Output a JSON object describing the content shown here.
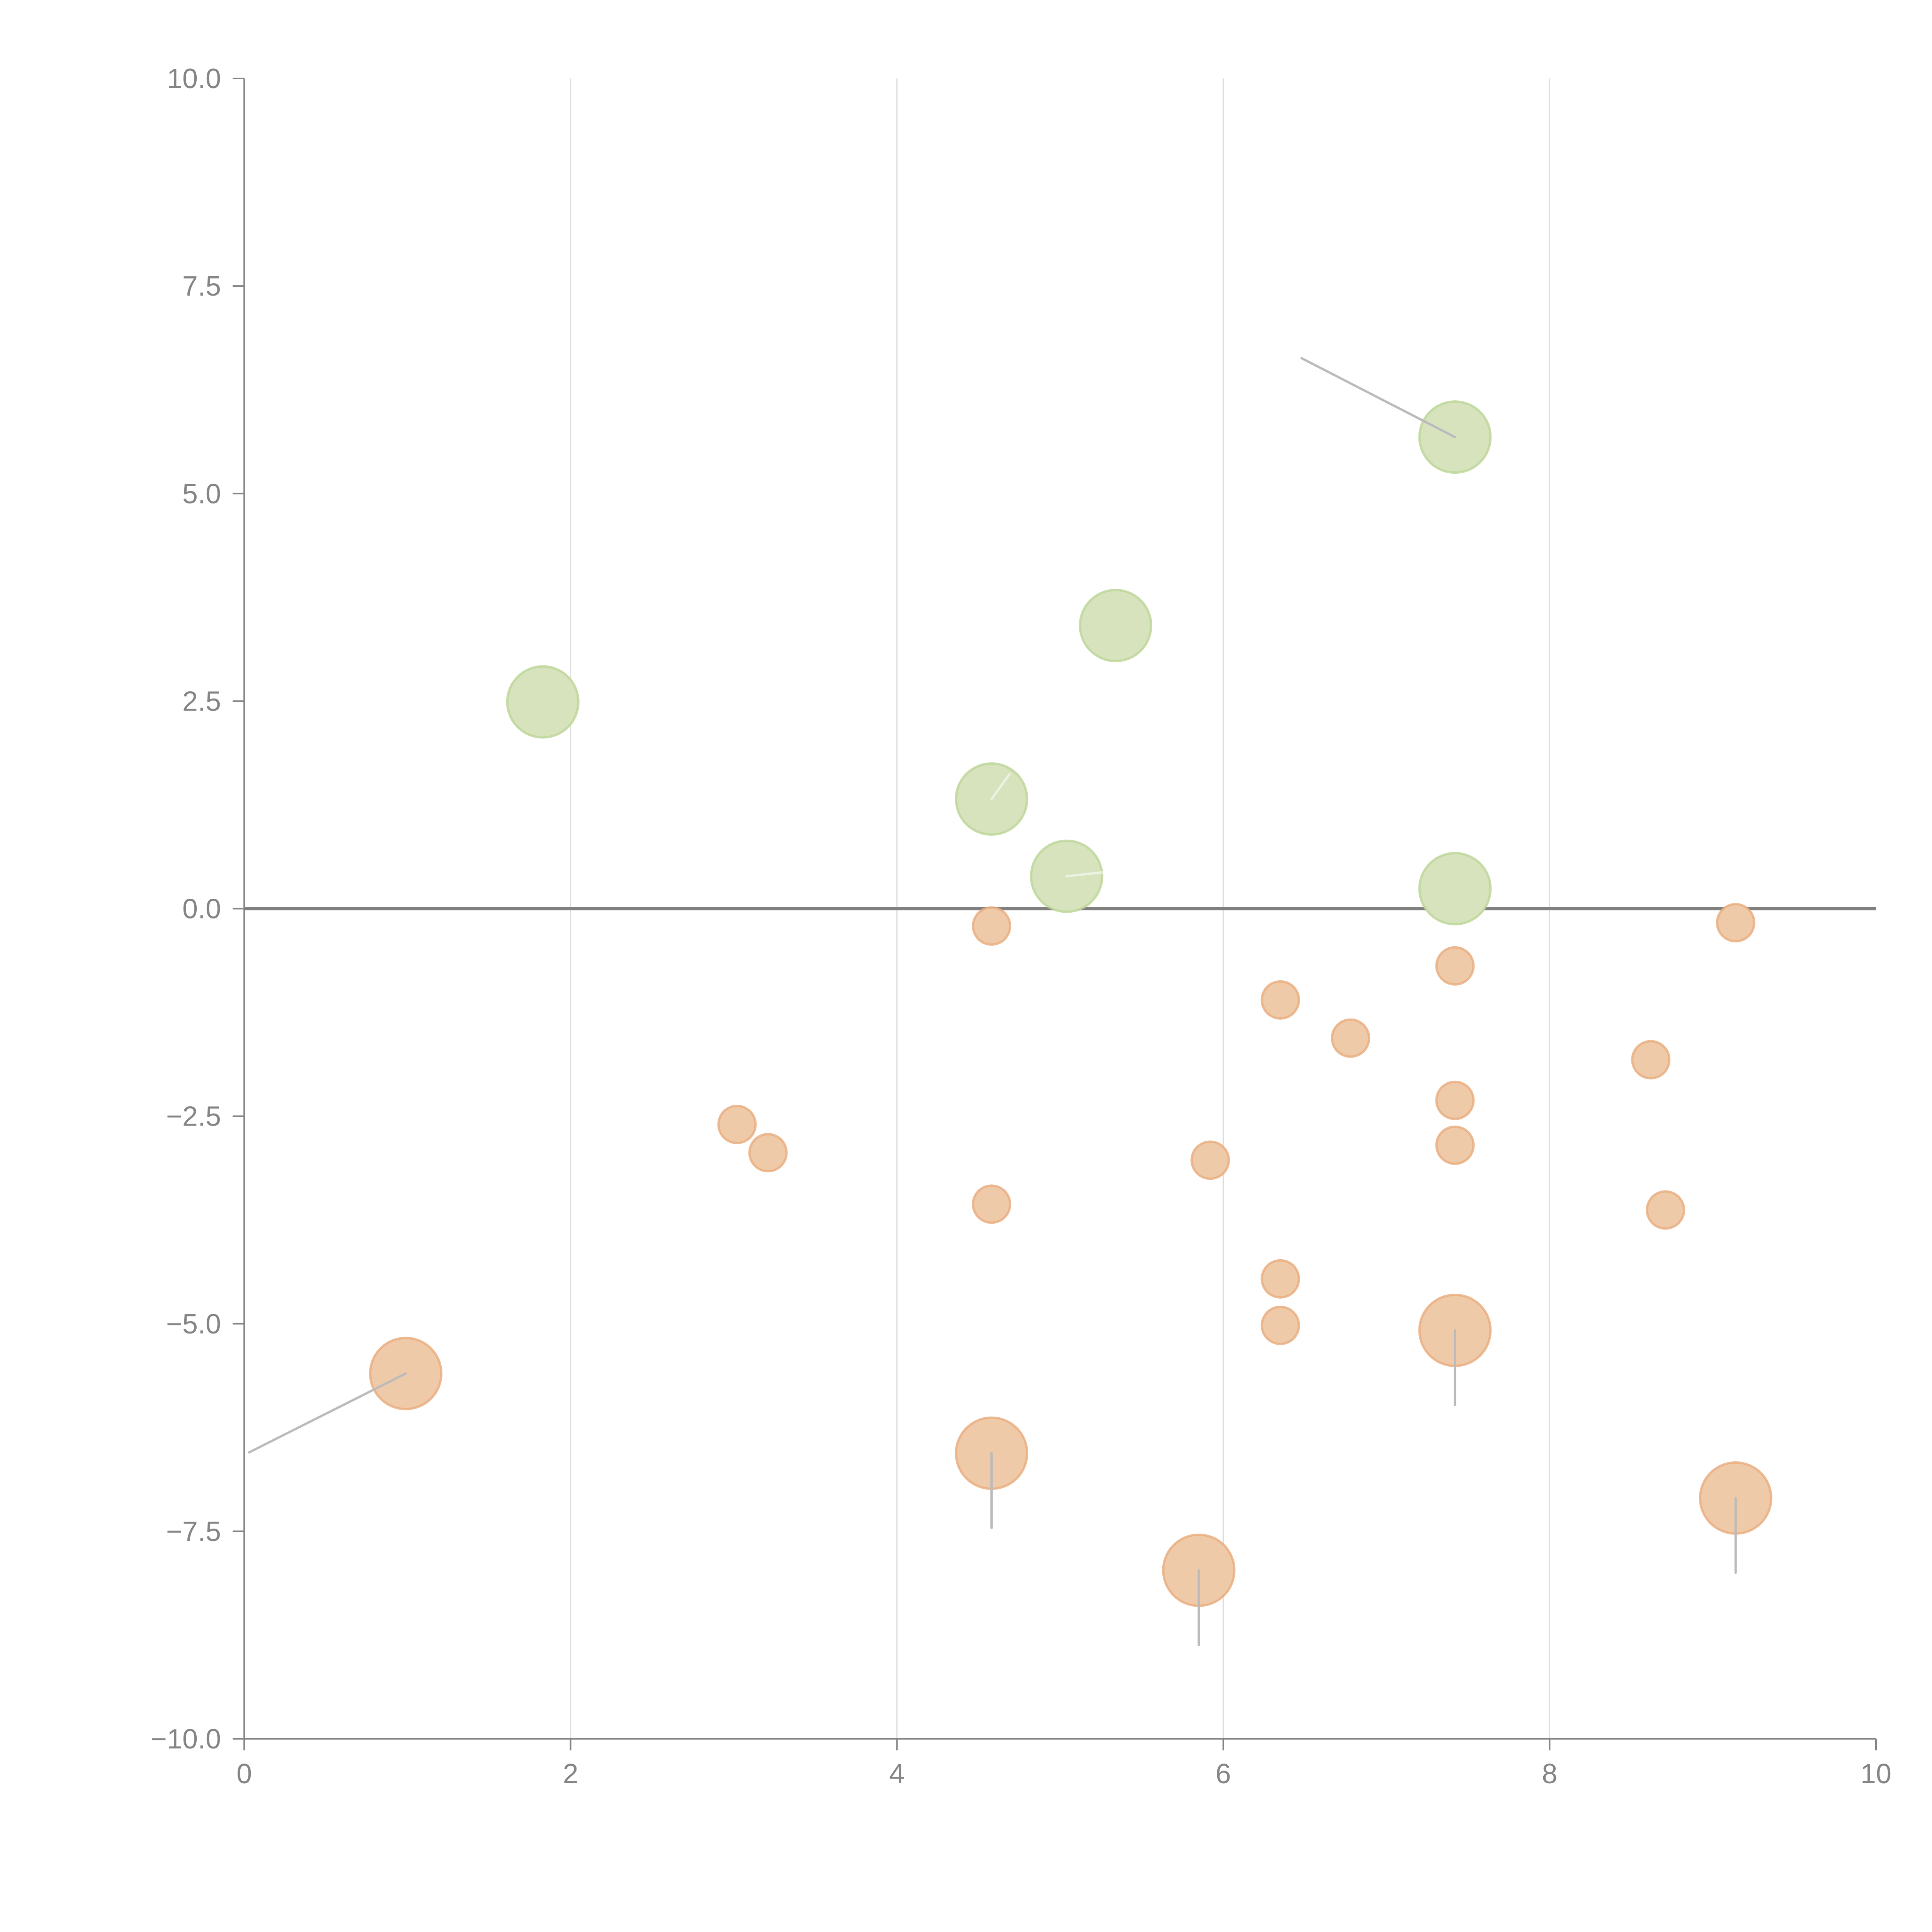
{
  "chart_data": {
    "type": "scatter",
    "title": "",
    "xlabel": "",
    "ylabel": "",
    "xlim": [
      0,
      10
    ],
    "ylim": [
      -10,
      10
    ],
    "x_ticks": [
      "0",
      "2",
      "4",
      "6",
      "8",
      "10"
    ],
    "x_tick_values": [
      0,
      2,
      4,
      6,
      8,
      10
    ],
    "y_ticks": [
      "10.0",
      "7.5",
      "5.0",
      "2.5",
      "0.0",
      "−2.5",
      "−5.0",
      "−7.5",
      "−10.0"
    ],
    "y_tick_values": [
      10,
      7.5,
      5,
      2.5,
      0,
      -2.5,
      -5,
      -7.5,
      -10
    ],
    "grid": "vertical",
    "reference_line_y": 0,
    "colors": {
      "positive_fill": "#d6e3bd",
      "positive_stroke": "#bcd596",
      "negative_fill": "#efcaa9",
      "negative_stroke": "#e8ab7c",
      "axis": "#858585",
      "gridline": "#dddddd",
      "leader": "#bbbbbb"
    },
    "series": [
      {
        "name": "positive-large",
        "color": "green",
        "size": "large",
        "points": [
          {
            "x": 1.83,
            "y": 2.49
          },
          {
            "x": 5.34,
            "y": 3.41
          },
          {
            "x": 7.42,
            "y": 5.68,
            "leader": {
              "dx": -0.94,
              "dy": 0.95,
              "style": "gray"
            }
          },
          {
            "x": 4.58,
            "y": 1.32,
            "leader": {
              "dx": 0.11,
              "dy": 0.3,
              "style": "light"
            }
          },
          {
            "x": 5.04,
            "y": 0.39,
            "leader": {
              "dx": 0.23,
              "dy": 0.05,
              "style": "light"
            }
          },
          {
            "x": 7.42,
            "y": 0.24
          }
        ]
      },
      {
        "name": "negative-small",
        "color": "orange",
        "size": "small",
        "points": [
          {
            "x": 4.58,
            "y": -0.21
          },
          {
            "x": 9.14,
            "y": -0.17
          },
          {
            "x": 7.42,
            "y": -0.69
          },
          {
            "x": 6.35,
            "y": -1.1
          },
          {
            "x": 6.78,
            "y": -1.56
          },
          {
            "x": 8.62,
            "y": -1.82
          },
          {
            "x": 7.42,
            "y": -2.31
          },
          {
            "x": 7.42,
            "y": -2.85
          },
          {
            "x": 3.02,
            "y": -2.6
          },
          {
            "x": 3.21,
            "y": -2.94
          },
          {
            "x": 5.92,
            "y": -3.03
          },
          {
            "x": 4.58,
            "y": -3.56
          },
          {
            "x": 8.71,
            "y": -3.63
          },
          {
            "x": 6.35,
            "y": -4.46
          },
          {
            "x": 6.35,
            "y": -5.02
          }
        ]
      },
      {
        "name": "negative-large",
        "color": "orange",
        "size": "large",
        "points": [
          {
            "x": 0.99,
            "y": -5.6,
            "leader": {
              "dx": -0.96,
              "dy": -0.95,
              "style": "gray"
            }
          },
          {
            "x": 7.42,
            "y": -5.08,
            "leader": {
              "dx": 0.0,
              "dy": -0.9,
              "style": "gray"
            }
          },
          {
            "x": 4.58,
            "y": -6.56,
            "leader": {
              "dx": 0.0,
              "dy": -0.9,
              "style": "gray"
            }
          },
          {
            "x": 5.85,
            "y": -7.97,
            "leader": {
              "dx": 0.0,
              "dy": -0.9,
              "style": "gray"
            }
          },
          {
            "x": 9.14,
            "y": -7.1,
            "leader": {
              "dx": 0.0,
              "dy": -0.9,
              "style": "gray"
            }
          }
        ]
      }
    ]
  }
}
